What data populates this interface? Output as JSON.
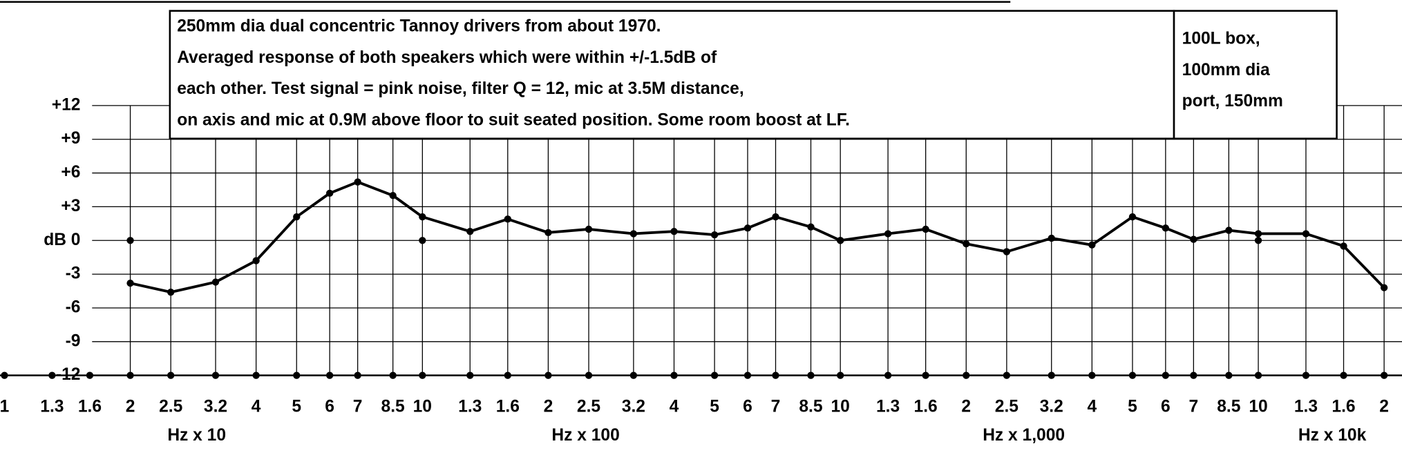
{
  "chart_data": {
    "type": "line",
    "annotations": [
      "250mm dia dual concentric Tannoy drivers from about 1970.",
      "Averaged response of both speakers which were within +/-1.5dB of",
      "each other. Test signal = pink noise, filter Q = 12, mic at 3.5M distance,",
      "on axis and mic at 0.9M above floor to suit seated position. Some room boost at LF."
    ],
    "side_note": [
      "100L box,",
      "100mm dia",
      "port, 150mm"
    ],
    "x_unit_labels": [
      "Hz x 10",
      "Hz x 100",
      "Hz x 1,000",
      "Hz x 10k"
    ],
    "x": [
      20,
      25,
      32,
      40,
      50,
      60,
      70,
      85,
      100,
      130,
      160,
      200,
      250,
      320,
      400,
      500,
      600,
      700,
      850,
      1000,
      1300,
      1600,
      2000,
      2500,
      3200,
      4000,
      5000,
      6000,
      7000,
      8500,
      10000,
      13000,
      16000,
      20000
    ],
    "series": [
      {
        "color": "#000000",
        "values": [
          -3.8,
          -4.6,
          -3.7,
          -1.8,
          2.1,
          4.2,
          5.2,
          4.0,
          2.1,
          0.8,
          1.9,
          0.7,
          1.0,
          0.6,
          0.8,
          0.5,
          1.1,
          2.1,
          1.2,
          0,
          0.6,
          1.0,
          -0.3,
          -1.0,
          0.2,
          -0.4,
          2.1,
          1.1,
          0.1,
          0.9,
          0.6,
          0.6,
          -0.5,
          -4.2
        ]
      },
      {
        "color": "#000000",
        "x": [
          20,
          100,
          1000,
          10000
        ],
        "values": [
          0,
          0,
          0,
          0
        ]
      }
    ],
    "xlog": true,
    "xlim": [
      10,
      20000
    ],
    "xticks": [
      {
        "value": 10,
        "label": "1"
      },
      {
        "value": 13,
        "label": "1.3"
      },
      {
        "value": 16,
        "label": "1.6"
      },
      {
        "value": 20,
        "label": "2"
      },
      {
        "value": 25,
        "label": "2.5"
      },
      {
        "value": 32,
        "label": "3.2"
      },
      {
        "value": 40,
        "label": "4"
      },
      {
        "value": 50,
        "label": "5"
      },
      {
        "value": 60,
        "label": "6"
      },
      {
        "value": 70,
        "label": "7"
      },
      {
        "value": 85,
        "label": "8.5"
      },
      {
        "value": 100,
        "label": "10"
      },
      {
        "value": 130,
        "label": "1.3"
      },
      {
        "value": 160,
        "label": "1.6"
      },
      {
        "value": 200,
        "label": "2"
      },
      {
        "value": 250,
        "label": "2.5"
      },
      {
        "value": 320,
        "label": "3.2"
      },
      {
        "value": 400,
        "label": "4"
      },
      {
        "value": 500,
        "label": "5"
      },
      {
        "value": 600,
        "label": "6"
      },
      {
        "value": 700,
        "label": "7"
      },
      {
        "value": 850,
        "label": "8.5"
      },
      {
        "value": 1000,
        "label": "10"
      },
      {
        "value": 1300,
        "label": "1.3"
      },
      {
        "value": 1600,
        "label": "1.6"
      },
      {
        "value": 2000,
        "label": "2"
      },
      {
        "value": 2500,
        "label": "2.5"
      },
      {
        "value": 3200,
        "label": "3.2"
      },
      {
        "value": 4000,
        "label": "4"
      },
      {
        "value": 5000,
        "label": "5"
      },
      {
        "value": 6000,
        "label": "6"
      },
      {
        "value": 7000,
        "label": "7"
      },
      {
        "value": 8500,
        "label": "8.5"
      },
      {
        "value": 10000,
        "label": "10"
      },
      {
        "value": 13000,
        "label": "1.3"
      },
      {
        "value": 16000,
        "label": "1.6"
      },
      {
        "value": 20000,
        "label": "2"
      }
    ],
    "ylim": [
      -12,
      12
    ],
    "yticks": [
      {
        "value": 12,
        "label": "+12"
      },
      {
        "value": 9,
        "label": "+9"
      },
      {
        "value": 6,
        "label": "+6"
      },
      {
        "value": 3,
        "label": "+3"
      },
      {
        "value": 0,
        "label": "dB 0"
      },
      -3,
      -6,
      -9,
      -12
    ],
    "grid": true
  }
}
